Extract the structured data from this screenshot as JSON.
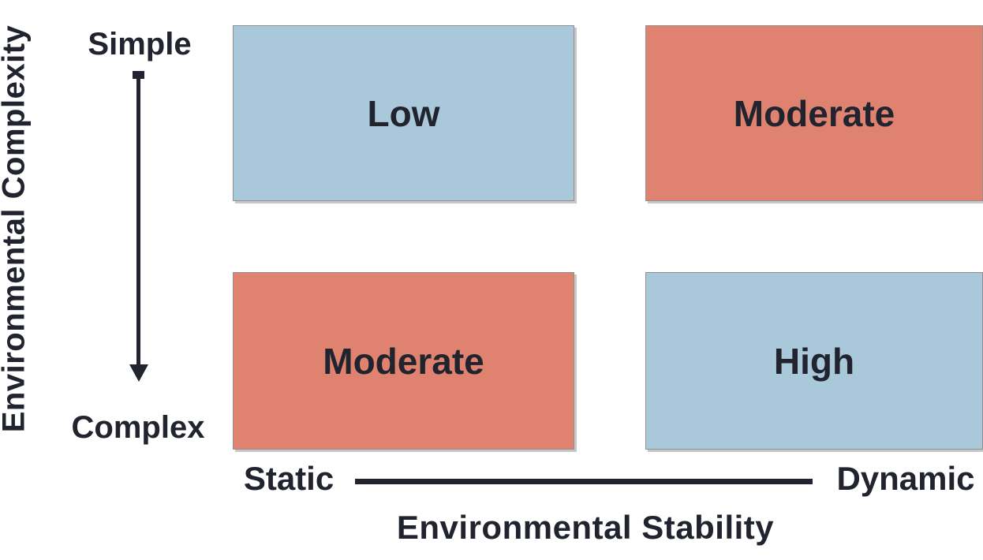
{
  "diagram": {
    "y_axis": {
      "title": "Environmental Complexity",
      "top_label": "Simple",
      "bottom_label": "Complex"
    },
    "x_axis": {
      "left_label": "Static",
      "right_label": "Dynamic",
      "title": "Environmental Stability"
    },
    "quadrants": [
      {
        "row": "top",
        "col": "left",
        "label": "Low",
        "color": "#a9c9da"
      },
      {
        "row": "top",
        "col": "right",
        "label": "Moderate",
        "color": "#df8270"
      },
      {
        "row": "bottom",
        "col": "left",
        "label": "Moderate",
        "color": "#df8270"
      },
      {
        "row": "bottom",
        "col": "right",
        "label": "High",
        "color": "#a9c9da"
      }
    ],
    "colors": {
      "quadrant_blue": "#a9c9da",
      "quadrant_salmon": "#df8270",
      "text": "#21242e",
      "box_edge": "#909090"
    },
    "matrix_summary": {
      "type": "table",
      "x_categories": [
        "Static",
        "Dynamic"
      ],
      "y_categories": [
        "Simple",
        "Complex"
      ],
      "values": [
        [
          "Low",
          "Moderate"
        ],
        [
          "Moderate",
          "High"
        ]
      ]
    }
  }
}
